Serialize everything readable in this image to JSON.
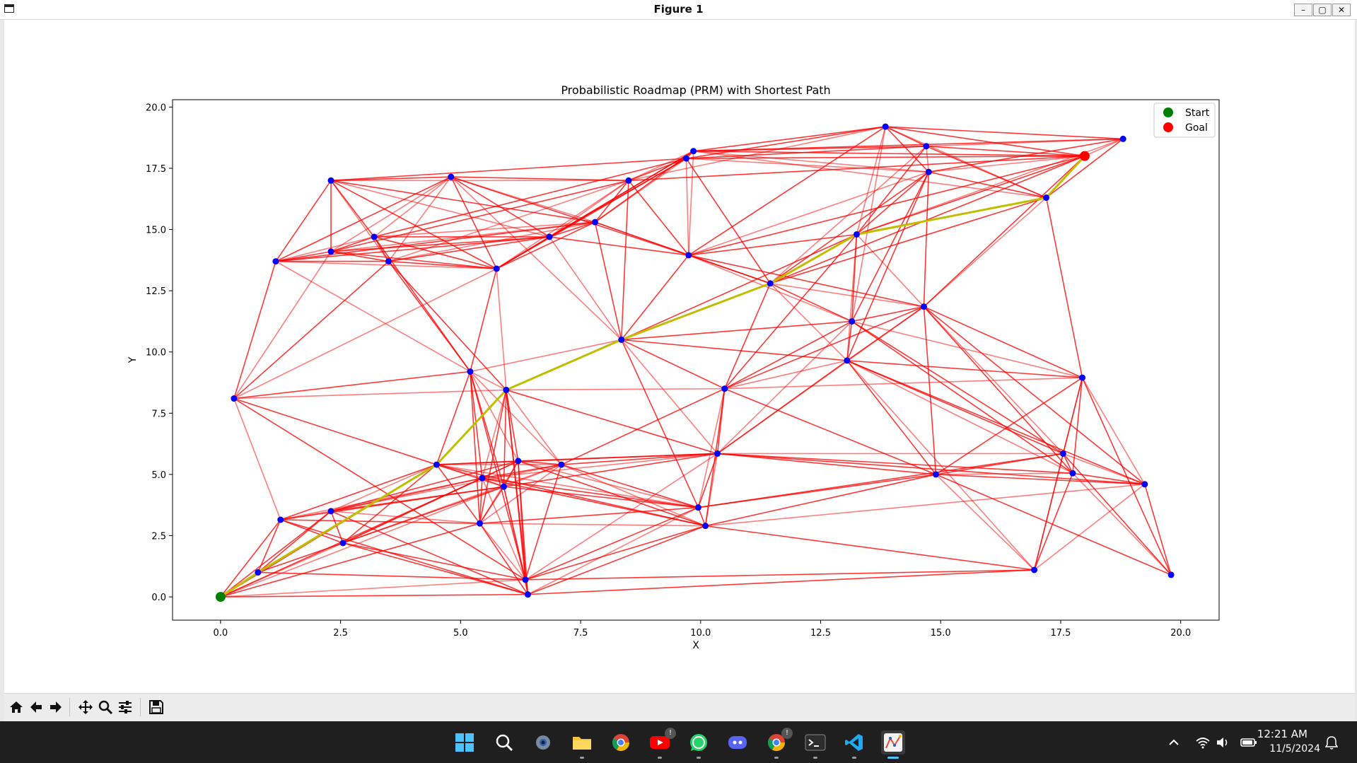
{
  "window": {
    "title": "Figure 1",
    "minimize": "–",
    "maximize": "▢",
    "close": "✕"
  },
  "chart_data": {
    "type": "scatter",
    "title": "Probabilistic Roadmap (PRM) with Shortest Path",
    "xlabel": "X",
    "ylabel": "Y",
    "xlim": [
      -1.0,
      20.8
    ],
    "ylim": [
      -0.95,
      20.3
    ],
    "xticks": [
      0.0,
      2.5,
      5.0,
      7.5,
      10.0,
      12.5,
      15.0,
      17.5,
      20.0
    ],
    "xtick_labels": [
      "0.0",
      "2.5",
      "5.0",
      "7.5",
      "10.0",
      "12.5",
      "15.0",
      "17.5",
      "20.0"
    ],
    "yticks": [
      0.0,
      2.5,
      5.0,
      7.5,
      10.0,
      12.5,
      15.0,
      17.5,
      20.0
    ],
    "ytick_labels": [
      "0.0",
      "2.5",
      "5.0",
      "7.5",
      "10.0",
      "12.5",
      "15.0",
      "17.5",
      "20.0"
    ],
    "grid": false,
    "legend": {
      "position": "top-right",
      "entries": [
        {
          "label": "Start",
          "color": "#008000"
        },
        {
          "label": "Goal",
          "color": "#ff0000"
        }
      ]
    },
    "colors": {
      "nodes": "#0000ff",
      "edges": "#ff0000",
      "path": "#bfbf00",
      "start": "#008000",
      "goal": "#ff0000"
    },
    "start": [
      0.0,
      0.0
    ],
    "goal": [
      18.0,
      18.0
    ],
    "nodes": [
      [
        0.0,
        0.0
      ],
      [
        0.78,
        1.0
      ],
      [
        1.25,
        3.15
      ],
      [
        2.3,
        3.5
      ],
      [
        2.55,
        2.2
      ],
      [
        0.28,
        8.1
      ],
      [
        1.15,
        13.7
      ],
      [
        2.3,
        17.0
      ],
      [
        2.3,
        14.1
      ],
      [
        3.2,
        14.7
      ],
      [
        3.5,
        13.7
      ],
      [
        4.8,
        17.15
      ],
      [
        5.75,
        13.4
      ],
      [
        6.85,
        14.7
      ],
      [
        7.8,
        15.3
      ],
      [
        8.5,
        17.0
      ],
      [
        9.7,
        17.9
      ],
      [
        9.85,
        18.2
      ],
      [
        9.75,
        13.95
      ],
      [
        8.35,
        10.5
      ],
      [
        5.2,
        9.2
      ],
      [
        5.95,
        8.45
      ],
      [
        4.5,
        5.4
      ],
      [
        5.45,
        4.85
      ],
      [
        6.2,
        5.55
      ],
      [
        5.9,
        4.5
      ],
      [
        7.1,
        5.4
      ],
      [
        5.4,
        3.0
      ],
      [
        6.35,
        0.7
      ],
      [
        6.4,
        0.1
      ],
      [
        9.95,
        3.65
      ],
      [
        10.1,
        2.9
      ],
      [
        10.35,
        5.85
      ],
      [
        10.5,
        8.5
      ],
      [
        11.45,
        12.8
      ],
      [
        13.15,
        11.25
      ],
      [
        13.05,
        9.65
      ],
      [
        13.25,
        14.8
      ],
      [
        13.85,
        19.2
      ],
      [
        14.7,
        18.4
      ],
      [
        14.75,
        17.35
      ],
      [
        14.65,
        11.85
      ],
      [
        14.9,
        5.0
      ],
      [
        16.95,
        1.1
      ],
      [
        17.2,
        16.3
      ],
      [
        18.0,
        18.0
      ],
      [
        18.8,
        18.7
      ],
      [
        17.95,
        8.95
      ],
      [
        17.55,
        5.85
      ],
      [
        17.75,
        5.05
      ],
      [
        19.25,
        4.6
      ],
      [
        19.8,
        0.9
      ]
    ],
    "edges": [
      [
        0,
        1
      ],
      [
        0,
        2
      ],
      [
        0,
        3
      ],
      [
        0,
        4
      ],
      [
        0,
        22
      ],
      [
        0,
        23
      ],
      [
        0,
        28
      ],
      [
        0,
        29
      ],
      [
        0,
        27
      ],
      [
        0,
        25
      ],
      [
        1,
        2
      ],
      [
        1,
        4
      ],
      [
        1,
        22
      ],
      [
        1,
        28
      ],
      [
        1,
        3
      ],
      [
        2,
        3
      ],
      [
        2,
        4
      ],
      [
        2,
        27
      ],
      [
        2,
        23
      ],
      [
        2,
        22
      ],
      [
        2,
        25
      ],
      [
        2,
        5
      ],
      [
        2,
        29
      ],
      [
        3,
        4
      ],
      [
        3,
        22
      ],
      [
        3,
        23
      ],
      [
        3,
        24
      ],
      [
        3,
        27
      ],
      [
        3,
        25
      ],
      [
        3,
        29
      ],
      [
        3,
        26
      ],
      [
        4,
        22
      ],
      [
        4,
        23
      ],
      [
        4,
        24
      ],
      [
        4,
        25
      ],
      [
        4,
        28
      ],
      [
        4,
        26
      ],
      [
        4,
        29
      ],
      [
        5,
        6
      ],
      [
        5,
        8
      ],
      [
        5,
        10
      ],
      [
        5,
        20
      ],
      [
        5,
        21
      ],
      [
        5,
        22
      ],
      [
        5,
        28
      ],
      [
        5,
        12
      ],
      [
        6,
        7
      ],
      [
        6,
        8
      ],
      [
        6,
        9
      ],
      [
        6,
        10
      ],
      [
        6,
        11
      ],
      [
        6,
        12
      ],
      [
        6,
        13
      ],
      [
        6,
        14
      ],
      [
        6,
        20
      ],
      [
        7,
        8
      ],
      [
        7,
        9
      ],
      [
        7,
        10
      ],
      [
        7,
        11
      ],
      [
        7,
        12
      ],
      [
        7,
        13
      ],
      [
        7,
        14
      ],
      [
        7,
        16
      ],
      [
        7,
        15
      ],
      [
        8,
        9
      ],
      [
        8,
        10
      ],
      [
        8,
        11
      ],
      [
        8,
        12
      ],
      [
        8,
        13
      ],
      [
        8,
        14
      ],
      [
        8,
        15
      ],
      [
        9,
        10
      ],
      [
        9,
        11
      ],
      [
        9,
        12
      ],
      [
        9,
        13
      ],
      [
        9,
        14
      ],
      [
        9,
        20
      ],
      [
        9,
        16
      ],
      [
        10,
        11
      ],
      [
        10,
        12
      ],
      [
        10,
        13
      ],
      [
        10,
        14
      ],
      [
        10,
        20
      ],
      [
        10,
        21
      ],
      [
        10,
        15
      ],
      [
        11,
        12
      ],
      [
        11,
        13
      ],
      [
        11,
        14
      ],
      [
        11,
        15
      ],
      [
        11,
        18
      ],
      [
        11,
        19
      ],
      [
        12,
        13
      ],
      [
        12,
        14
      ],
      [
        12,
        15
      ],
      [
        12,
        16
      ],
      [
        12,
        20
      ],
      [
        12,
        21
      ],
      [
        12,
        17
      ],
      [
        13,
        14
      ],
      [
        13,
        15
      ],
      [
        13,
        16
      ],
      [
        13,
        17
      ],
      [
        13,
        19
      ],
      [
        13,
        18
      ],
      [
        14,
        15
      ],
      [
        14,
        16
      ],
      [
        14,
        17
      ],
      [
        14,
        19
      ],
      [
        14,
        18
      ],
      [
        14,
        34
      ],
      [
        15,
        16
      ],
      [
        15,
        17
      ],
      [
        15,
        18
      ],
      [
        15,
        19
      ],
      [
        15,
        38
      ],
      [
        15,
        45
      ],
      [
        16,
        17
      ],
      [
        16,
        18
      ],
      [
        16,
        38
      ],
      [
        16,
        39
      ],
      [
        16,
        40
      ],
      [
        16,
        45
      ],
      [
        16,
        34
      ],
      [
        17,
        18
      ],
      [
        17,
        38
      ],
      [
        17,
        39
      ],
      [
        17,
        40
      ],
      [
        17,
        45
      ],
      [
        17,
        46
      ],
      [
        17,
        44
      ],
      [
        18,
        19
      ],
      [
        18,
        34
      ],
      [
        18,
        35
      ],
      [
        18,
        37
      ],
      [
        18,
        38
      ],
      [
        18,
        40
      ],
      [
        18,
        41
      ],
      [
        18,
        45
      ],
      [
        19,
        20
      ],
      [
        19,
        21
      ],
      [
        19,
        33
      ],
      [
        19,
        34
      ],
      [
        19,
        36
      ],
      [
        19,
        30
      ],
      [
        19,
        32
      ],
      [
        19,
        37
      ],
      [
        19,
        35
      ],
      [
        20,
        21
      ],
      [
        20,
        22
      ],
      [
        20,
        23
      ],
      [
        20,
        24
      ],
      [
        20,
        25
      ],
      [
        20,
        27
      ],
      [
        20,
        26
      ],
      [
        20,
        28
      ],
      [
        21,
        22
      ],
      [
        21,
        23
      ],
      [
        21,
        24
      ],
      [
        21,
        25
      ],
      [
        21,
        26
      ],
      [
        21,
        27
      ],
      [
        21,
        28
      ],
      [
        21,
        33
      ],
      [
        21,
        32
      ],
      [
        21,
        29
      ],
      [
        22,
        23
      ],
      [
        22,
        24
      ],
      [
        22,
        25
      ],
      [
        22,
        26
      ],
      [
        22,
        27
      ],
      [
        22,
        32
      ],
      [
        22,
        30
      ],
      [
        22,
        31
      ],
      [
        23,
        24
      ],
      [
        23,
        25
      ],
      [
        23,
        26
      ],
      [
        23,
        27
      ],
      [
        23,
        28
      ],
      [
        23,
        30
      ],
      [
        23,
        31
      ],
      [
        23,
        32
      ],
      [
        24,
        25
      ],
      [
        24,
        26
      ],
      [
        24,
        27
      ],
      [
        24,
        28
      ],
      [
        24,
        29
      ],
      [
        24,
        30
      ],
      [
        24,
        32
      ],
      [
        24,
        31
      ],
      [
        25,
        26
      ],
      [
        25,
        27
      ],
      [
        25,
        28
      ],
      [
        25,
        29
      ],
      [
        25,
        30
      ],
      [
        25,
        32
      ],
      [
        26,
        27
      ],
      [
        26,
        28
      ],
      [
        26,
        30
      ],
      [
        26,
        31
      ],
      [
        26,
        32
      ],
      [
        26,
        33
      ],
      [
        27,
        28
      ],
      [
        27,
        29
      ],
      [
        27,
        30
      ],
      [
        27,
        31
      ],
      [
        28,
        29
      ],
      [
        28,
        31
      ],
      [
        28,
        32
      ],
      [
        28,
        30
      ],
      [
        29,
        31
      ],
      [
        29,
        30
      ],
      [
        30,
        31
      ],
      [
        30,
        32
      ],
      [
        30,
        33
      ],
      [
        30,
        42
      ],
      [
        30,
        48
      ],
      [
        31,
        32
      ],
      [
        31,
        33
      ],
      [
        31,
        42
      ],
      [
        31,
        50
      ],
      [
        31,
        43
      ],
      [
        32,
        33
      ],
      [
        32,
        35
      ],
      [
        32,
        36
      ],
      [
        32,
        42
      ],
      [
        32,
        48
      ],
      [
        32,
        49
      ],
      [
        32,
        50
      ],
      [
        32,
        41
      ],
      [
        33,
        34
      ],
      [
        33,
        35
      ],
      [
        33,
        36
      ],
      [
        33,
        37
      ],
      [
        33,
        41
      ],
      [
        33,
        47
      ],
      [
        33,
        42
      ],
      [
        34,
        35
      ],
      [
        34,
        36
      ],
      [
        34,
        37
      ],
      [
        34,
        40
      ],
      [
        34,
        41
      ],
      [
        34,
        44
      ],
      [
        34,
        45
      ],
      [
        34,
        39
      ],
      [
        35,
        36
      ],
      [
        35,
        37
      ],
      [
        35,
        38
      ],
      [
        35,
        40
      ],
      [
        35,
        41
      ],
      [
        35,
        47
      ],
      [
        35,
        48
      ],
      [
        35,
        49
      ],
      [
        36,
        37
      ],
      [
        36,
        41
      ],
      [
        36,
        42
      ],
      [
        36,
        43
      ],
      [
        36,
        47
      ],
      [
        36,
        48
      ],
      [
        36,
        49
      ],
      [
        36,
        50
      ],
      [
        36,
        40
      ],
      [
        37,
        38
      ],
      [
        37,
        39
      ],
      [
        37,
        40
      ],
      [
        37,
        41
      ],
      [
        37,
        44
      ],
      [
        37,
        45
      ],
      [
        37,
        46
      ],
      [
        38,
        39
      ],
      [
        38,
        40
      ],
      [
        38,
        44
      ],
      [
        38,
        45
      ],
      [
        38,
        46
      ],
      [
        39,
        40
      ],
      [
        39,
        44
      ],
      [
        39,
        45
      ],
      [
        39,
        46
      ],
      [
        40,
        41
      ],
      [
        40,
        44
      ],
      [
        40,
        45
      ],
      [
        40,
        46
      ],
      [
        41,
        42
      ],
      [
        41,
        44
      ],
      [
        41,
        45
      ],
      [
        41,
        47
      ],
      [
        41,
        48
      ],
      [
        41,
        49
      ],
      [
        41,
        50
      ],
      [
        42,
        43
      ],
      [
        42,
        47
      ],
      [
        42,
        48
      ],
      [
        42,
        49
      ],
      [
        42,
        50
      ],
      [
        42,
        51
      ],
      [
        43,
        47
      ],
      [
        43,
        48
      ],
      [
        43,
        49
      ],
      [
        43,
        50
      ],
      [
        43,
        28
      ],
      [
        43,
        29
      ],
      [
        44,
        45
      ],
      [
        44,
        46
      ],
      [
        44,
        47
      ],
      [
        45,
        46
      ],
      [
        47,
        48
      ],
      [
        47,
        49
      ],
      [
        47,
        50
      ],
      [
        47,
        51
      ],
      [
        48,
        49
      ],
      [
        48,
        50
      ],
      [
        48,
        51
      ],
      [
        49,
        50
      ],
      [
        49,
        51
      ],
      [
        50,
        51
      ]
    ],
    "path": [
      [
        0.0,
        0.0
      ],
      [
        0.78,
        1.0
      ],
      [
        4.5,
        5.4
      ],
      [
        5.95,
        8.45
      ],
      [
        8.35,
        10.5
      ],
      [
        11.45,
        12.8
      ],
      [
        13.25,
        14.8
      ],
      [
        17.2,
        16.3
      ],
      [
        18.0,
        18.0
      ]
    ]
  },
  "toolbar": {
    "buttons": [
      {
        "name": "home-button",
        "icon": "home-icon"
      },
      {
        "name": "back-button",
        "icon": "arrow-left-icon"
      },
      {
        "name": "forward-button",
        "icon": "arrow-right-icon"
      },
      {
        "name": "pan-button",
        "icon": "move-icon"
      },
      {
        "name": "zoom-button",
        "icon": "magnifier-icon"
      },
      {
        "name": "configure-subplots-button",
        "icon": "sliders-icon"
      },
      {
        "name": "save-figure-button",
        "icon": "floppy-icon"
      }
    ]
  },
  "taskbar": {
    "apps": [
      "start",
      "search",
      "settings",
      "file-explorer",
      "chrome",
      "youtube",
      "whatsapp",
      "discord",
      "chrome-profile",
      "terminal",
      "vscode",
      "python-figure"
    ],
    "badges": {
      "youtube": "!",
      "chrome-profile": "!"
    },
    "clock": {
      "time": "12:21 AM",
      "date": "11/5/2024"
    }
  }
}
